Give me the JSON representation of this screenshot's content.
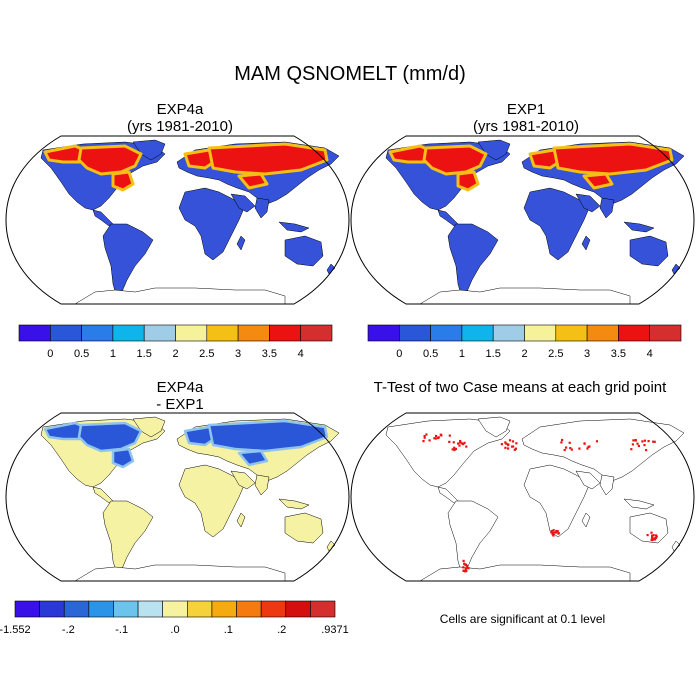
{
  "main_title": "MAM QSNOMELT (mm/d)",
  "panels": [
    {
      "title_line1": "EXP4a",
      "title_line2": "(yrs 1981-2010)",
      "field": "snowmelt"
    },
    {
      "title_line1": "EXP1",
      "title_line2": "(yrs 1981-2010)",
      "field": "snowmelt"
    },
    {
      "title_line1": "EXP4a",
      "title_line2": "- EXP1",
      "field": "difference"
    },
    {
      "title_line1": "T-Test of two Case means at each grid point",
      "title_line2": "",
      "field": "significance"
    }
  ],
  "colorbar_top": {
    "colors": [
      "#3a10e8",
      "#2a56d8",
      "#2a7ce8",
      "#10b4ec",
      "#a0cce8",
      "#f6f29a",
      "#f5c015",
      "#f58a10",
      "#ed1212",
      "#d42e2e"
    ],
    "labels": [
      "0",
      "0.5",
      "1",
      "1.5",
      "2",
      "2.5",
      "3",
      "3.5",
      "4"
    ]
  },
  "colorbar_diff": {
    "colors": [
      "#3a10e8",
      "#2a38d8",
      "#2a66d8",
      "#2a94e8",
      "#6cc4ec",
      "#b8e2f0",
      "#f6f2a0",
      "#f5d23a",
      "#f5aa10",
      "#f57a10",
      "#ed3812",
      "#d40e0e",
      "#d42e2e"
    ],
    "labels": [
      "-1.552",
      "-.2",
      "-.1",
      ".0",
      ".1",
      ".2",
      ".9371"
    ]
  },
  "significance_note": "Cells are significant at 0.1 level",
  "colors": {
    "land_snowmelt": "#3552d8",
    "land_difference": "#f6f2a4",
    "significant_cell": "#ed1212",
    "outline": "#000000"
  }
}
